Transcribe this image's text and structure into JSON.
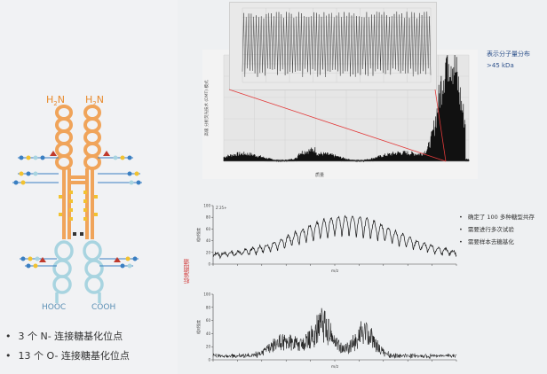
{
  "left": {
    "labels": {
      "nh2_left": "H",
      "nh2_left_sub": "2",
      "nh2_left_n": "N",
      "nh2_right": "H",
      "nh2_right_sub": "2",
      "nh2_right_n": "N",
      "hooc": "HOOC",
      "cooh": "COOH"
    },
    "bullets": [
      "3 个 N- 连接糖基化位点",
      "13 个 O- 连接糖基化位点"
    ],
    "colors": {
      "chain": "#f0a45a",
      "inner": "#a8d4e0",
      "glycan_blue": "#3a7fc2",
      "glycan_yellow": "#f2c230",
      "glycan_red": "#c0392b",
      "glycan_dark": "#333333"
    }
  },
  "top_chart": {
    "side_label": "表示分子量分布",
    "side_value": ">45 kDa",
    "ylabel": "高级 分析荧光技术 (DMT) 模式",
    "xlabel": "质量"
  },
  "mid_chart": {
    "ylabel_red": "标准图谱",
    "ylabel": "相对强度",
    "xlabel": "m/z",
    "corner": "Z 25+",
    "bullets": [
      "确定了 100 多种糖型共存",
      "需要进行多次试验",
      "需要样本去糖基化"
    ]
  },
  "bot_chart": {
    "ylabel": "相对强度",
    "xlabel": "m/z"
  },
  "chart_data": [
    {
      "type": "area",
      "title": "",
      "xlabel": "质量",
      "ylabel": "高级 分析荧光技术 (DMT) 模式",
      "description_values": {
        "x": [
          0,
          10,
          20,
          30,
          40,
          50,
          60,
          70,
          80,
          90,
          100
        ],
        "y": [
          0.3,
          0.5,
          0.6,
          0.6,
          0.4,
          0.5,
          0.5,
          0.9,
          2.5,
          9.0,
          3.0
        ]
      },
      "inset": {
        "type": "line",
        "note": "zoomed dense oscillating trace"
      },
      "grid": true
    },
    {
      "type": "line",
      "xlabel": "m/z",
      "ylabel": "相对强度",
      "ylim": [
        0,
        100
      ],
      "yticks": [
        0,
        20,
        40,
        60,
        80,
        100
      ],
      "grid": false
    },
    {
      "type": "line",
      "xlabel": "m/z",
      "ylabel": "相对强度",
      "ylim": [
        0,
        100
      ],
      "yticks": [
        0,
        20,
        40,
        60,
        80,
        100
      ],
      "grid": false
    }
  ]
}
